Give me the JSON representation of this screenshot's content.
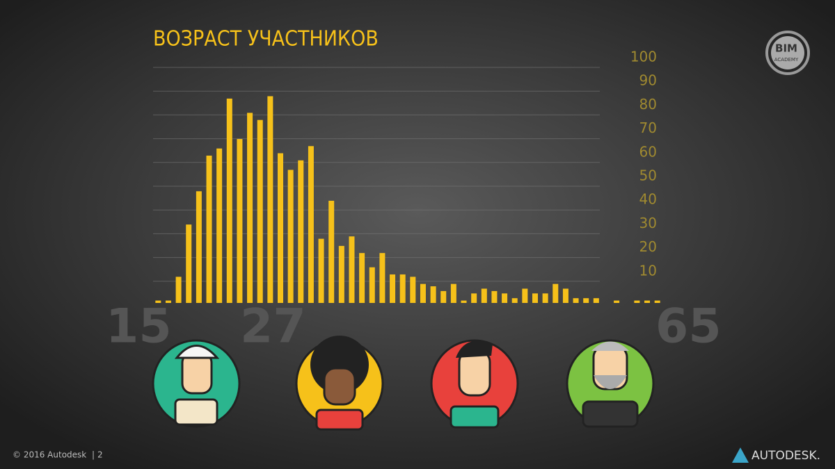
{
  "chart_data": {
    "type": "bar",
    "title": "ВОЗРАСТ  УЧАСТНИКОВ",
    "values": [
      1,
      1,
      11,
      33,
      47,
      62,
      65,
      86,
      69,
      80,
      77,
      87,
      63,
      56,
      60,
      66,
      27,
      43,
      24,
      28,
      21,
      15,
      21,
      12,
      12,
      11,
      8,
      7,
      5,
      8,
      1,
      4,
      6,
      5,
      4,
      2,
      6,
      4,
      4,
      8,
      6,
      2,
      2,
      2,
      0,
      1,
      0,
      1,
      1,
      1
    ],
    "color": "#f6c11a",
    "ylim": [
      0,
      100
    ],
    "yticks": [
      10,
      20,
      30,
      40,
      50,
      60,
      70,
      80,
      90,
      100
    ],
    "grid": true,
    "age_labels": [
      "15",
      "27",
      "65"
    ]
  },
  "footer": {
    "copyright": "© 2016 Autodesk",
    "page": "2",
    "brand": "AUTODESK.",
    "logo_top": "BIM",
    "logo_bottom": "ACADEMY"
  }
}
